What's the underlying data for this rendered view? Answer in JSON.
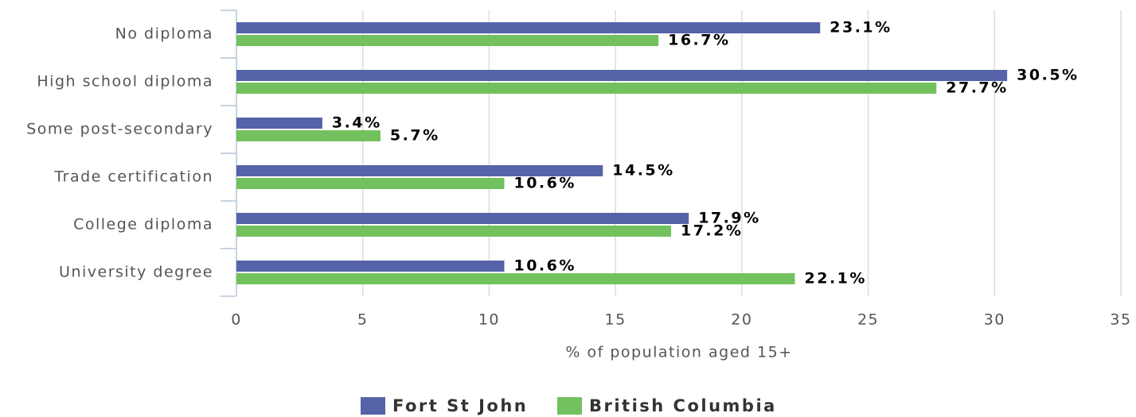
{
  "chart_data": {
    "type": "bar",
    "orientation": "horizontal",
    "categories": [
      "No diploma",
      "High school diploma",
      "Some post-secondary",
      "Trade certification",
      "College diploma",
      "University degree"
    ],
    "series": [
      {
        "name": "Fort St John",
        "color": "#5563a8",
        "values": [
          23.1,
          30.5,
          3.4,
          14.5,
          17.9,
          10.6
        ],
        "value_labels": [
          "23.1%",
          "30.5%",
          "3.4%",
          "14.5%",
          "17.9%",
          "10.6%"
        ]
      },
      {
        "name": "British Columbia",
        "color": "#72c15e",
        "values": [
          16.7,
          27.7,
          5.7,
          10.6,
          17.2,
          22.1
        ],
        "value_labels": [
          "16.7%",
          "27.7%",
          "5.7%",
          "10.6%",
          "17.2%",
          "22.1%"
        ]
      }
    ],
    "xlabel": "% of population aged 15+",
    "xlim": [
      0,
      35
    ],
    "xticks": [
      0,
      5,
      10,
      15,
      20,
      25,
      30,
      35
    ],
    "grid": true,
    "legend": "bottom"
  }
}
